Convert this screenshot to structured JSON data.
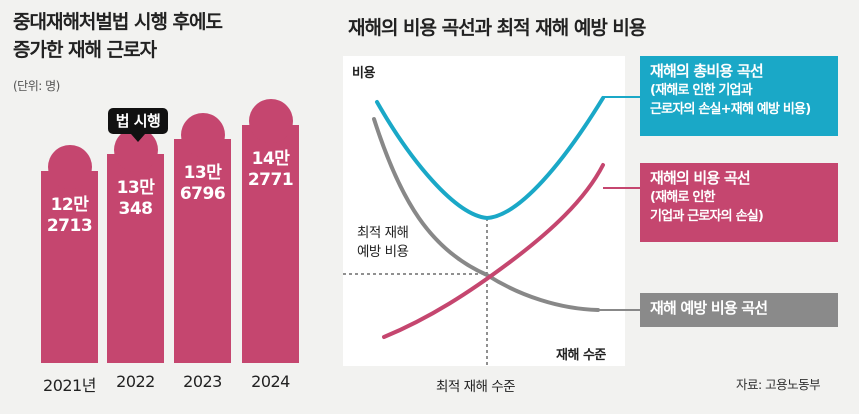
{
  "colors": {
    "bar": "#c5466f",
    "total_curve": "#1aa8c7",
    "loss_curve": "#c5466f",
    "prevention_curve": "#888888",
    "badge": "#111111",
    "background": "#f2f2f0",
    "plot_bg": "#ffffff"
  },
  "left": {
    "title_line1": "중대재해처벌법 시행 후에도",
    "title_line2": "증가한 재해 근로자",
    "unit": "(단위: 명)",
    "badge": "법 시행",
    "bars": [
      {
        "year": "2021년",
        "label1": "12만",
        "label2": "2713"
      },
      {
        "year": "2022",
        "label1": "13만",
        "label2": "348"
      },
      {
        "year": "2023",
        "label1": "13만",
        "label2": "6796"
      },
      {
        "year": "2024",
        "label1": "14만",
        "label2": "2771"
      }
    ]
  },
  "right": {
    "title": "재해의 비용 곡선과 최적 재해 예방 비용",
    "y_label": "비용",
    "x_label": "재해 수준",
    "x_optimal_label": "최적 재해 수준",
    "optimal_cost_line1": "최적 재해",
    "optimal_cost_line2": "예방 비용",
    "legend": {
      "total_title": "재해의 총비용 곡선",
      "total_sub1": "(재해로 인한 기업과",
      "total_sub2": "근로자의 손실+재해 예방 비용)",
      "loss_title": "재해의 비용 곡선",
      "loss_sub1": "(재해로 인한",
      "loss_sub2": "기업과 근로자의 손실)",
      "prevention_title": "재해 예방 비용 곡선"
    },
    "source": "자료: 고용노동부"
  },
  "chart_data": [
    {
      "type": "bar",
      "title": "중대재해처벌법 시행 후에도 증가한 재해 근로자",
      "unit": "명",
      "categories": [
        "2021년",
        "2022",
        "2023",
        "2024"
      ],
      "values": [
        122713,
        130348,
        136796,
        142771
      ],
      "annotation": {
        "category": "2022",
        "text": "법 시행"
      }
    },
    {
      "type": "line",
      "title": "재해의 비용 곡선과 최적 재해 예방 비용",
      "xlabel": "재해 수준",
      "ylabel": "비용",
      "series": [
        {
          "name": "재해의 총비용 곡선",
          "shape": "U-shaped, minimum at optimal level"
        },
        {
          "name": "재해의 비용 곡선",
          "shape": "increasing"
        },
        {
          "name": "재해 예방 비용 곡선",
          "shape": "decreasing"
        }
      ],
      "annotations": [
        "최적 재해 수준",
        "최적 재해 예방 비용"
      ]
    }
  ]
}
